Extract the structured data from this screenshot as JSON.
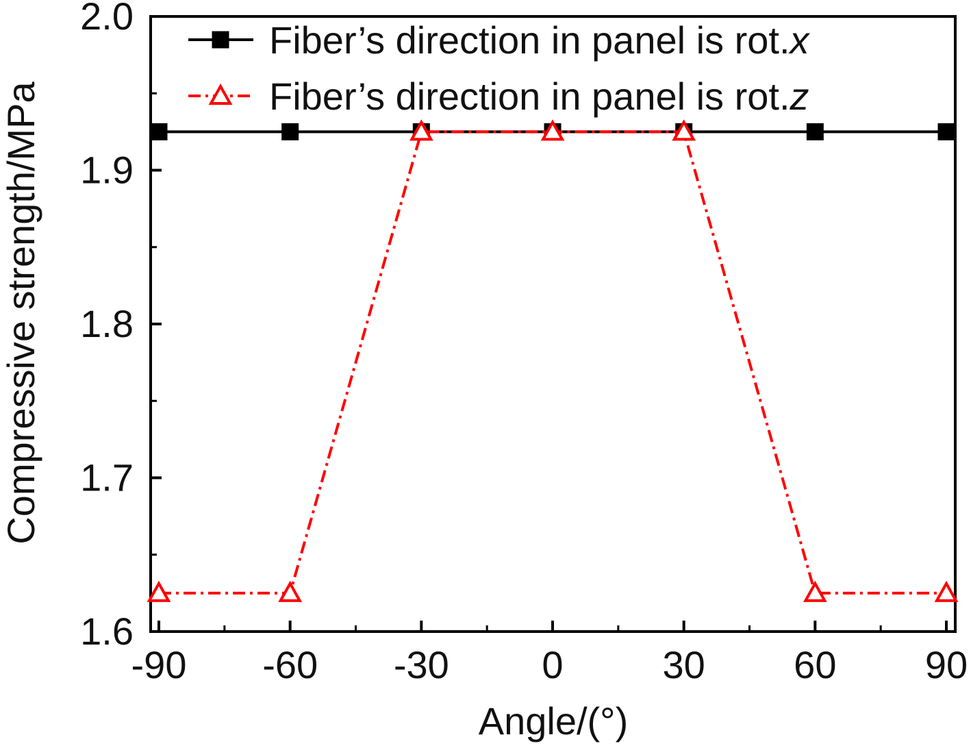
{
  "chart_data": {
    "type": "line",
    "title": "",
    "xlabel": "Angle/(°)",
    "ylabel": "Compressive strength/MPa",
    "xlim": [
      -90,
      90
    ],
    "ylim": [
      1.6,
      2.0
    ],
    "xticks": [
      -90,
      -60,
      -30,
      0,
      30,
      60,
      90
    ],
    "yticks": [
      1.6,
      1.7,
      1.8,
      1.9,
      2.0
    ],
    "xtick_labels": [
      "-90",
      "-60",
      "-30",
      "0",
      "30",
      "60",
      "90"
    ],
    "ytick_labels": [
      "1.6",
      "1.7",
      "1.8",
      "1.9",
      "2.0"
    ],
    "x": [
      -90,
      -60,
      -30,
      0,
      30,
      60,
      90
    ],
    "grid": false,
    "legend_position": "top-right",
    "series": [
      {
        "name": "Fiber’s direction in panel is rot.x",
        "legend_text": "Fiber’s direction in panel is rot.",
        "legend_suffix": "x",
        "values": [
          1.925,
          1.925,
          1.925,
          1.925,
          1.925,
          1.925,
          1.925
        ],
        "color": "#000000",
        "line_style": "solid",
        "marker": "filled-square"
      },
      {
        "name": "Fiber’s direction in panel is rot.z",
        "legend_text": "Fiber’s direction in panel is rot.",
        "legend_suffix": "z",
        "values": [
          1.625,
          1.625,
          1.925,
          1.925,
          1.925,
          1.625,
          1.625
        ],
        "color": "#ff0000",
        "line_style": "dash-dot",
        "marker": "open-triangle"
      }
    ]
  }
}
